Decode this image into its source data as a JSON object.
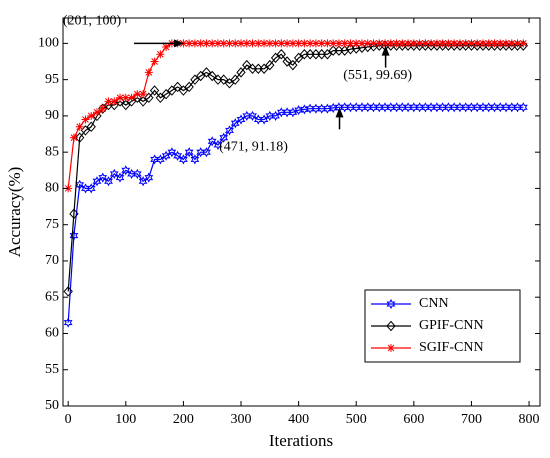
{
  "chart_data": {
    "type": "line",
    "x_label": "Iterations",
    "y_label": "Accuracy(%)",
    "x": [
      0,
      10,
      20,
      30,
      40,
      50,
      60,
      70,
      80,
      90,
      100,
      110,
      120,
      130,
      140,
      150,
      160,
      170,
      180,
      190,
      200,
      210,
      220,
      230,
      240,
      250,
      260,
      270,
      280,
      290,
      300,
      310,
      320,
      330,
      340,
      350,
      360,
      370,
      380,
      390,
      400,
      410,
      420,
      430,
      440,
      450,
      460,
      470,
      480,
      490,
      500,
      510,
      520,
      530,
      540,
      550,
      560,
      570,
      580,
      590,
      600,
      610,
      620,
      630,
      640,
      650,
      660,
      670,
      680,
      690,
      700,
      710,
      720,
      730,
      740,
      750,
      760,
      770,
      780,
      790
    ],
    "series": [
      {
        "name": "CNN",
        "color": "#0000ff",
        "marker": "hexagram",
        "values": [
          61.5,
          73.5,
          80.5,
          80,
          80,
          81,
          81.5,
          81,
          82,
          81.5,
          82.5,
          82,
          82,
          81,
          81.5,
          84,
          84,
          84.5,
          85,
          84.5,
          84,
          85,
          84,
          85,
          85,
          86.5,
          86,
          87,
          88,
          89,
          89.5,
          90,
          90,
          89.5,
          89.5,
          90,
          90,
          90.5,
          90.5,
          90.5,
          90.8,
          90.9,
          91,
          91,
          91,
          91,
          91.1,
          91.18,
          91.18,
          91.18,
          91.18,
          91.18,
          91.18,
          91.18,
          91.18,
          91.18,
          91.18,
          91.18,
          91.18,
          91.18,
          91.18,
          91.18,
          91.18,
          91.18,
          91.18,
          91.18,
          91.18,
          91.18,
          91.18,
          91.18,
          91.18,
          91.18,
          91.18,
          91.18,
          91.18,
          91.18,
          91.18,
          91.18,
          91.18,
          91.18
        ]
      },
      {
        "name": "GPIF-CNN",
        "color": "#000000",
        "marker": "diamond",
        "values": [
          65.8,
          76.5,
          87,
          88,
          88.5,
          90,
          91,
          91.5,
          91.5,
          92,
          91.5,
          92,
          92.5,
          92,
          92.5,
          93.5,
          92.5,
          93,
          93.5,
          94,
          93.5,
          94,
          95,
          95.5,
          96,
          95.5,
          95,
          95,
          94.5,
          95,
          96,
          97,
          96.5,
          96.5,
          96.5,
          97,
          98,
          98.5,
          97.5,
          97,
          98,
          98.5,
          98.5,
          98.5,
          98.5,
          98.5,
          99,
          99,
          99,
          99.2,
          99.3,
          99.4,
          99.5,
          99.6,
          99.69,
          99.69,
          99.69,
          99.69,
          99.69,
          99.69,
          99.69,
          99.69,
          99.69,
          99.69,
          99.69,
          99.69,
          99.69,
          99.69,
          99.69,
          99.69,
          99.69,
          99.69,
          99.69,
          99.69,
          99.69,
          99.69,
          99.69,
          99.69,
          99.69,
          99.69
        ]
      },
      {
        "name": "SGIF-CNN",
        "color": "#ff0000",
        "marker": "asterisk",
        "values": [
          80,
          87,
          88.5,
          89.5,
          90,
          90.5,
          91,
          92,
          92,
          92.5,
          92.5,
          92.5,
          93,
          93,
          96,
          97.5,
          98.5,
          99.5,
          100,
          100,
          100,
          100,
          100,
          100,
          100,
          100,
          100,
          100,
          100,
          100,
          100,
          100,
          100,
          100,
          100,
          100,
          100,
          100,
          100,
          100,
          100,
          100,
          100,
          100,
          100,
          100,
          100,
          100,
          100,
          100,
          100,
          100,
          100,
          100,
          100,
          100,
          100,
          100,
          100,
          100,
          100,
          100,
          100,
          100,
          100,
          100,
          100,
          100,
          100,
          100,
          100,
          100,
          100,
          100,
          100,
          100,
          100,
          100,
          100,
          100
        ]
      }
    ],
    "annotations": [
      {
        "text": "(201, 100)",
        "x": 201,
        "y": 100
      },
      {
        "text": "(551, 99.69)",
        "x": 551,
        "y": 99.69
      },
      {
        "text": "(471, 91.18)",
        "x": 471,
        "y": 91.18
      }
    ],
    "xlim": [
      -9,
      819
    ],
    "ylim": [
      50,
      103.5
    ],
    "xticks": [
      0,
      100,
      200,
      300,
      400,
      500,
      600,
      700,
      800
    ],
    "yticks": [
      50,
      55,
      60,
      65,
      70,
      75,
      80,
      85,
      90,
      95,
      100
    ],
    "legend": "lower right",
    "grid": false
  }
}
